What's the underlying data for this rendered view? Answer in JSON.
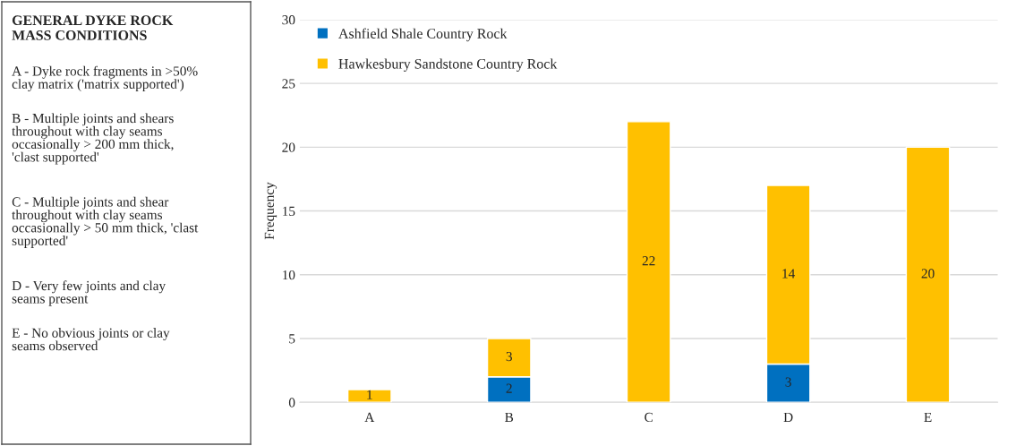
{
  "chart_data": [
    {
      "type": "other",
      "title": "GENERAL DYKE ROCK\nMASS CONDITIONS",
      "annotations": [
        "A - Dyke rock fragments in >50%\nclay matrix ('matrix supported')",
        "B - Multiple joints and shears\nthroughout with clay seams\noccasionally > 200 mm thick,\n'clast supported'",
        "C - Multiple joints and shear\nthroughout with clay seams\noccasionally > 50 mm thick, 'clast\nsupported'",
        "D - Very few joints and clay\nseams present",
        "E - No obvious joints or clay\nseams observed"
      ]
    },
    {
      "type": "bar",
      "stacked": true,
      "ylabel": "Frequency",
      "categories": [
        "A",
        "B",
        "C",
        "D",
        "E"
      ],
      "series": [
        {
          "name": "Ashfield Shale Country Rock",
          "color": "#0070c0",
          "values": [
            null,
            2,
            null,
            3,
            null
          ]
        },
        {
          "name": "Hawkesbury Sandstone Country Rock",
          "color": "#ffc000",
          "values": [
            1,
            3,
            22,
            14,
            20
          ]
        }
      ],
      "ylim": [
        0,
        30
      ],
      "yticks": [
        0,
        5,
        10,
        15,
        20,
        25,
        30
      ],
      "grid": "y",
      "legend": "top left",
      "data_labels": true
    }
  ]
}
